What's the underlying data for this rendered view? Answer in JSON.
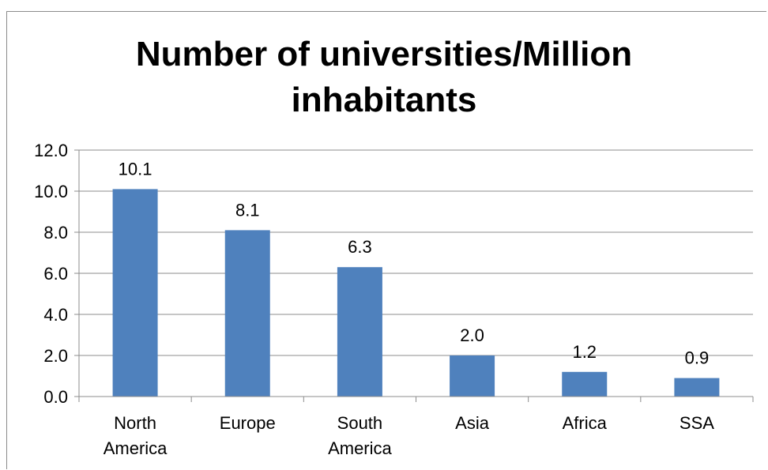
{
  "chart_data": {
    "type": "bar",
    "title_lines": [
      "Number of universities/Million",
      "inhabitants"
    ],
    "categories": [
      [
        "North",
        "America"
      ],
      [
        "Europe"
      ],
      [
        "South",
        "America"
      ],
      [
        "Asia"
      ],
      [
        "Africa"
      ],
      [
        "SSA"
      ]
    ],
    "values": [
      10.1,
      8.1,
      6.3,
      2.0,
      1.2,
      0.9
    ],
    "data_labels": [
      "10.1",
      "8.1",
      "6.3",
      "2.0",
      "1.2",
      "0.9"
    ],
    "y_ticks": [
      "0.0",
      "2.0",
      "4.0",
      "6.0",
      "8.0",
      "10.0",
      "12.0"
    ],
    "ylim": [
      0,
      12
    ],
    "grid": true,
    "legend": "none",
    "bar_color": "#4f81bd"
  }
}
